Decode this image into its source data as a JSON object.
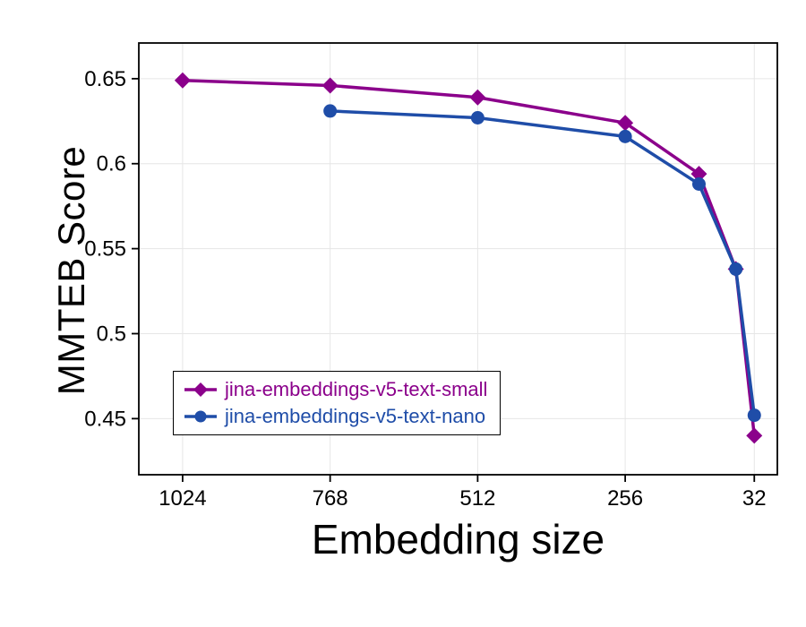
{
  "axes": {
    "x_label": "Embedding size",
    "y_label": "MMTEB Score"
  },
  "colors": {
    "series_small": "#8B008B",
    "series_nano": "#1F4DA8",
    "grid": "#e6e6e6",
    "axis": "#000000",
    "background": "#ffffff"
  },
  "chart_data": {
    "type": "line",
    "title": "",
    "xlabel": "Embedding size",
    "ylabel": "MMTEB Score",
    "x_axis_reversed": true,
    "xlim": [
      1100,
      -8
    ],
    "ylim": [
      0.417,
      0.671
    ],
    "grid": true,
    "legend_position": "lower-left",
    "x_ticks": [
      {
        "value": 1024,
        "label": "1024"
      },
      {
        "value": 768,
        "label": "768"
      },
      {
        "value": 512,
        "label": "512"
      },
      {
        "value": 256,
        "label": "256"
      },
      {
        "value": 32,
        "label": "32"
      }
    ],
    "y_ticks": [
      {
        "value": 0.45,
        "label": "0.45"
      },
      {
        "value": 0.5,
        "label": "0.5"
      },
      {
        "value": 0.55,
        "label": "0.55"
      },
      {
        "value": 0.6,
        "label": "0.6"
      },
      {
        "value": 0.65,
        "label": "0.65"
      }
    ],
    "series": [
      {
        "name": "jina-embeddings-v5-text-small",
        "color": "#8B008B",
        "marker": "diamond",
        "x": [
          1024,
          768,
          512,
          256,
          128,
          64,
          32
        ],
        "y": [
          0.649,
          0.646,
          0.639,
          0.624,
          0.594,
          0.538,
          0.44
        ]
      },
      {
        "name": "jina-embeddings-v5-text-nano",
        "color": "#1F4DA8",
        "marker": "circle",
        "x": [
          768,
          512,
          256,
          128,
          64,
          32
        ],
        "y": [
          0.631,
          0.627,
          0.616,
          0.588,
          0.538,
          0.452
        ]
      }
    ]
  }
}
